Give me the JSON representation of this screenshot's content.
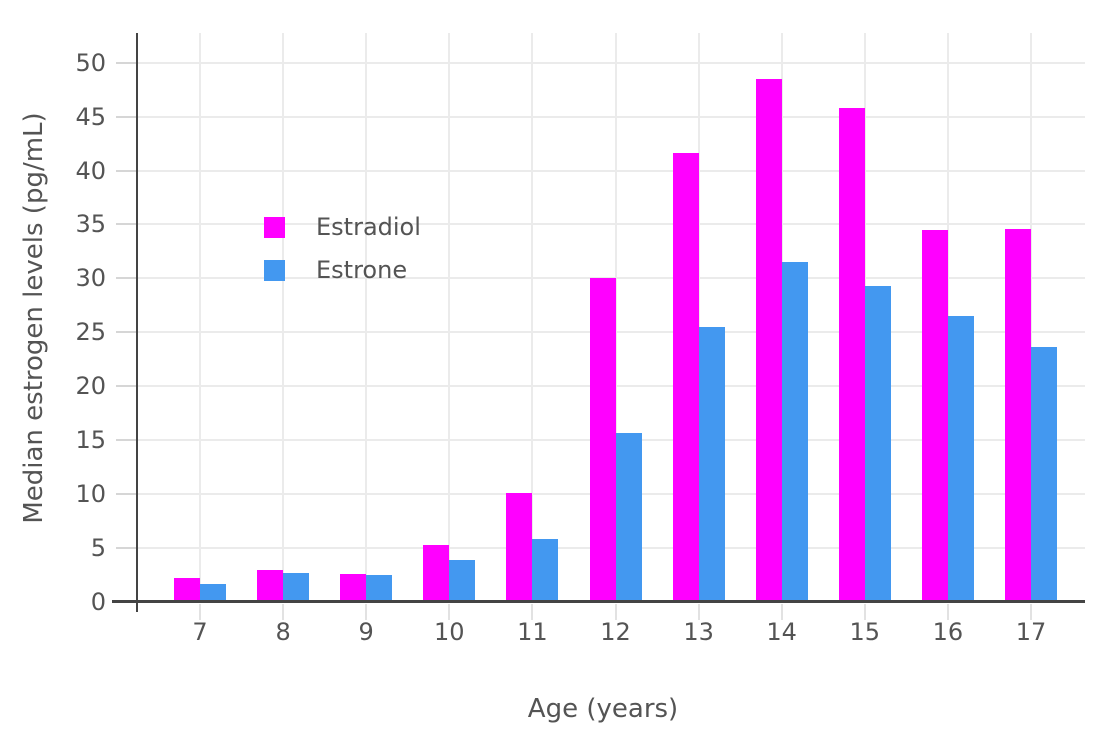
{
  "chart_data": {
    "type": "bar",
    "title": "",
    "xlabel": "Age (years)",
    "ylabel": "Median estrogen levels (pg/mL)",
    "categories": [
      "7",
      "8",
      "9",
      "10",
      "11",
      "12",
      "13",
      "14",
      "15",
      "16",
      "17"
    ],
    "series": [
      {
        "name": "Estradiol",
        "color": "#ff00ff",
        "values": [
          2.2,
          3.0,
          2.6,
          5.3,
          10.1,
          30.0,
          41.6,
          48.5,
          45.8,
          34.5,
          34.6
        ]
      },
      {
        "name": "Estrone",
        "color": "#4398f0",
        "values": [
          1.7,
          2.7,
          2.5,
          3.9,
          5.8,
          15.7,
          25.5,
          31.5,
          29.3,
          26.5,
          23.6
        ]
      }
    ],
    "yticks": [
      0,
      5,
      10,
      15,
      20,
      25,
      30,
      35,
      40,
      45,
      50
    ],
    "ylim": [
      0,
      52.75
    ],
    "grid": true,
    "legend_position": "inside-top-left",
    "colors": {
      "axis_line": "#444444",
      "grid_line": "#ebebeb",
      "label_text": "#545454",
      "background": "#ffffff"
    }
  }
}
